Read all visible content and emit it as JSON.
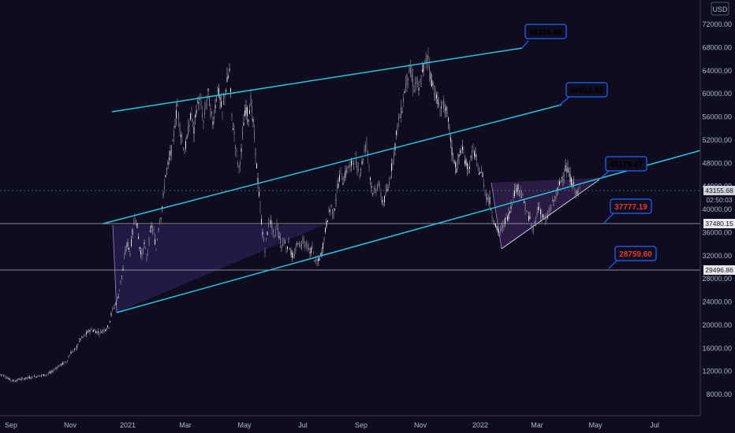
{
  "chart_data": {
    "type": "candlestick",
    "x_ticks": [
      "Sep",
      "Nov",
      "2021",
      "Mar",
      "May",
      "Jul",
      "Sep",
      "Nov",
      "2022",
      "Mar",
      "May",
      "Jul"
    ],
    "y_ticks": [
      "72000.00",
      "68000.00",
      "64000.00",
      "60000.00",
      "56000.00",
      "52000.00",
      "48000.00",
      "44000.00",
      "40000.00",
      "36000.00",
      "32000.00",
      "28000.00",
      "24000.00",
      "20000.00",
      "16000.00",
      "12000.00",
      "8000.00"
    ],
    "currency": "USD",
    "ylim": [
      4000,
      76000
    ],
    "current_price": "43155.68",
    "countdown": "02:50:03",
    "horizontal_levels": [
      "37480.15",
      "29496.86"
    ],
    "callouts": [
      {
        "text": "68116.08",
        "color": "#ffffff"
      },
      {
        "text": "58012.93",
        "color": "#ffffff"
      },
      {
        "text": "45179.47",
        "color": "#ffffff"
      },
      {
        "text": "37777.19",
        "color": "#e53935"
      },
      {
        "text": "28759.60",
        "color": "#e53935"
      }
    ],
    "price_path": [
      [
        0,
        11500
      ],
      [
        6,
        11200
      ],
      [
        12,
        10600
      ],
      [
        18,
        10300
      ],
      [
        24,
        10600
      ],
      [
        30,
        10700
      ],
      [
        36,
        10900
      ],
      [
        42,
        11000
      ],
      [
        48,
        11200
      ],
      [
        54,
        11300
      ],
      [
        60,
        11500
      ],
      [
        66,
        11900
      ],
      [
        72,
        12700
      ],
      [
        78,
        13200
      ],
      [
        84,
        13600
      ],
      [
        90,
        15200
      ],
      [
        96,
        15800
      ],
      [
        102,
        17600
      ],
      [
        108,
        18200
      ],
      [
        114,
        19200
      ],
      [
        120,
        19000
      ],
      [
        126,
        18700
      ],
      [
        132,
        19200
      ],
      [
        138,
        19800
      ],
      [
        142,
        22500
      ],
      [
        146,
        23500
      ],
      [
        150,
        25000
      ],
      [
        153,
        27500
      ],
      [
        156,
        29500
      ],
      [
        159,
        33000
      ],
      [
        162,
        34000
      ],
      [
        165,
        32500
      ],
      [
        168,
        36000
      ],
      [
        171,
        39000
      ],
      [
        174,
        37000
      ],
      [
        177,
        33500
      ],
      [
        180,
        32000
      ],
      [
        183,
        34000
      ],
      [
        186,
        31500
      ],
      [
        189,
        34500
      ],
      [
        192,
        37000
      ],
      [
        195,
        36000
      ],
      [
        198,
        33000
      ],
      [
        201,
        37000
      ],
      [
        204,
        39000
      ],
      [
        207,
        42000
      ],
      [
        210,
        46000
      ],
      [
        213,
        47500
      ],
      [
        216,
        49500
      ],
      [
        219,
        51000
      ],
      [
        222,
        55000
      ],
      [
        225,
        58000
      ],
      [
        228,
        54500
      ],
      [
        231,
        52000
      ],
      [
        234,
        50000
      ],
      [
        237,
        52000
      ],
      [
        240,
        55000
      ],
      [
        243,
        56500
      ],
      [
        246,
        53500
      ],
      [
        249,
        57500
      ],
      [
        252,
        59000
      ],
      [
        255,
        58000
      ],
      [
        258,
        55000
      ],
      [
        261,
        58000
      ],
      [
        264,
        60000
      ],
      [
        267,
        57000
      ],
      [
        270,
        55000
      ],
      [
        273,
        58000
      ],
      [
        276,
        61000
      ],
      [
        279,
        59000
      ],
      [
        282,
        56500
      ],
      [
        285,
        60000
      ],
      [
        288,
        62000
      ],
      [
        291,
        64000
      ],
      [
        294,
        56000
      ],
      [
        297,
        53000
      ],
      [
        300,
        49500
      ],
      [
        303,
        47000
      ],
      [
        306,
        50000
      ],
      [
        309,
        55000
      ],
      [
        312,
        57500
      ],
      [
        315,
        56000
      ],
      [
        318,
        59000
      ],
      [
        321,
        55000
      ],
      [
        324,
        50000
      ],
      [
        327,
        45000
      ],
      [
        330,
        40000
      ],
      [
        333,
        36000
      ],
      [
        336,
        33000
      ],
      [
        339,
        36000
      ],
      [
        342,
        38500
      ],
      [
        345,
        37000
      ],
      [
        348,
        35000
      ],
      [
        351,
        37500
      ],
      [
        354,
        35500
      ],
      [
        357,
        33500
      ],
      [
        360,
        35000
      ],
      [
        363,
        33000
      ],
      [
        366,
        34500
      ],
      [
        369,
        32500
      ],
      [
        372,
        31500
      ],
      [
        375,
        33000
      ],
      [
        378,
        34500
      ],
      [
        381,
        33500
      ],
      [
        384,
        35000
      ],
      [
        387,
        34000
      ],
      [
        390,
        33500
      ],
      [
        393,
        32500
      ],
      [
        396,
        33500
      ],
      [
        399,
        31500
      ],
      [
        402,
        30500
      ],
      [
        405,
        31500
      ],
      [
        408,
        32500
      ],
      [
        411,
        35000
      ],
      [
        414,
        37500
      ],
      [
        417,
        39500
      ],
      [
        420,
        40500
      ],
      [
        423,
        39000
      ],
      [
        426,
        42000
      ],
      [
        429,
        44500
      ],
      [
        432,
        46500
      ],
      [
        435,
        45000
      ],
      [
        438,
        46000
      ],
      [
        441,
        47500
      ],
      [
        444,
        47000
      ],
      [
        447,
        48500
      ],
      [
        450,
        49000
      ],
      [
        453,
        47000
      ],
      [
        456,
        46500
      ],
      [
        459,
        48000
      ],
      [
        462,
        50000
      ],
      [
        465,
        51500
      ],
      [
        468,
        47500
      ],
      [
        471,
        44000
      ],
      [
        474,
        42500
      ],
      [
        477,
        43500
      ],
      [
        480,
        44500
      ],
      [
        483,
        42500
      ],
      [
        486,
        41000
      ],
      [
        489,
        42500
      ],
      [
        492,
        43500
      ],
      [
        495,
        46000
      ],
      [
        498,
        48500
      ],
      [
        501,
        51000
      ],
      [
        504,
        54500
      ],
      [
        507,
        56000
      ],
      [
        510,
        57500
      ],
      [
        513,
        60500
      ],
      [
        516,
        62500
      ],
      [
        519,
        64000
      ],
      [
        522,
        63000
      ],
      [
        525,
        61000
      ],
      [
        528,
        62000
      ],
      [
        531,
        60500
      ],
      [
        534,
        62500
      ],
      [
        537,
        64500
      ],
      [
        540,
        65500
      ],
      [
        543,
        66500
      ],
      [
        546,
        63000
      ],
      [
        549,
        61500
      ],
      [
        552,
        60000
      ],
      [
        555,
        58500
      ],
      [
        558,
        57000
      ],
      [
        561,
        58500
      ],
      [
        564,
        57500
      ],
      [
        567,
        56000
      ],
      [
        570,
        54000
      ],
      [
        573,
        50000
      ],
      [
        576,
        48500
      ],
      [
        579,
        47000
      ],
      [
        582,
        49000
      ],
      [
        585,
        50500
      ],
      [
        588,
        49500
      ],
      [
        591,
        48000
      ],
      [
        594,
        47000
      ],
      [
        597,
        48500
      ],
      [
        600,
        50500
      ],
      [
        603,
        49000
      ],
      [
        606,
        47000
      ],
      [
        609,
        46500
      ],
      [
        612,
        46000
      ],
      [
        615,
        43000
      ],
      [
        618,
        42000
      ],
      [
        621,
        41500
      ],
      [
        624,
        39000
      ],
      [
        627,
        38000
      ],
      [
        630,
        36500
      ],
      [
        633,
        36000
      ],
      [
        636,
        36500
      ],
      [
        639,
        37500
      ],
      [
        642,
        38500
      ],
      [
        645,
        39000
      ],
      [
        648,
        40500
      ],
      [
        651,
        42500
      ],
      [
        654,
        43500
      ],
      [
        657,
        44000
      ],
      [
        660,
        43000
      ],
      [
        663,
        42000
      ],
      [
        666,
        40500
      ],
      [
        669,
        39000
      ],
      [
        672,
        38500
      ],
      [
        675,
        36000
      ],
      [
        678,
        37500
      ],
      [
        681,
        39500
      ],
      [
        684,
        40500
      ],
      [
        687,
        39000
      ],
      [
        690,
        38500
      ],
      [
        693,
        38000
      ],
      [
        696,
        39500
      ],
      [
        699,
        40500
      ],
      [
        702,
        41500
      ],
      [
        705,
        42500
      ],
      [
        708,
        43500
      ],
      [
        711,
        45000
      ],
      [
        714,
        46000
      ],
      [
        717,
        47000
      ],
      [
        720,
        46500
      ],
      [
        723,
        45500
      ],
      [
        726,
        44500
      ],
      [
        729,
        43500
      ],
      [
        732,
        42500
      ],
      [
        735,
        43200
      ]
    ]
  }
}
